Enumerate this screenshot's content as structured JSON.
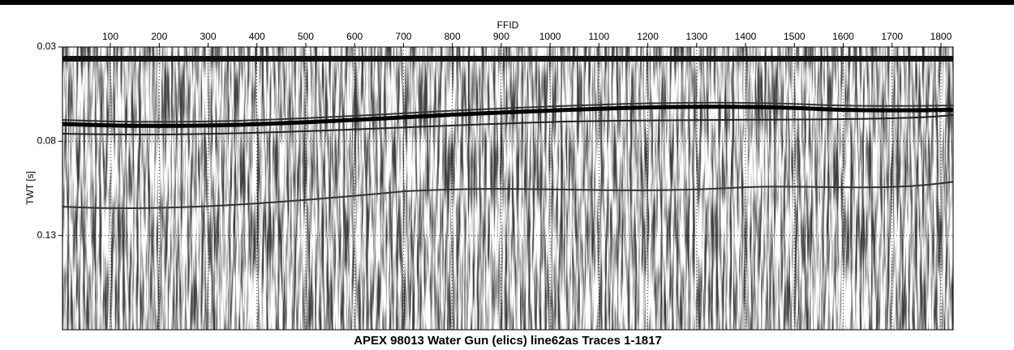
{
  "chart_data": {
    "type": "seismic",
    "title": "APEX 98013 Water Gun (elics) line62as Traces 1-1817",
    "xlabel": "FFID",
    "ylabel": "TWT [s]",
    "xlim": [
      2,
      1825
    ],
    "xticks": [
      100,
      200,
      300,
      400,
      500,
      600,
      700,
      800,
      900,
      1000,
      1100,
      1200,
      1300,
      1400,
      1500,
      1600,
      1700,
      1800
    ],
    "ylim": [
      0.03,
      0.18
    ],
    "yticks": [
      0.03,
      0.08,
      0.13
    ],
    "x_axis_position": "top",
    "y_inverted": true,
    "grid": true
  }
}
